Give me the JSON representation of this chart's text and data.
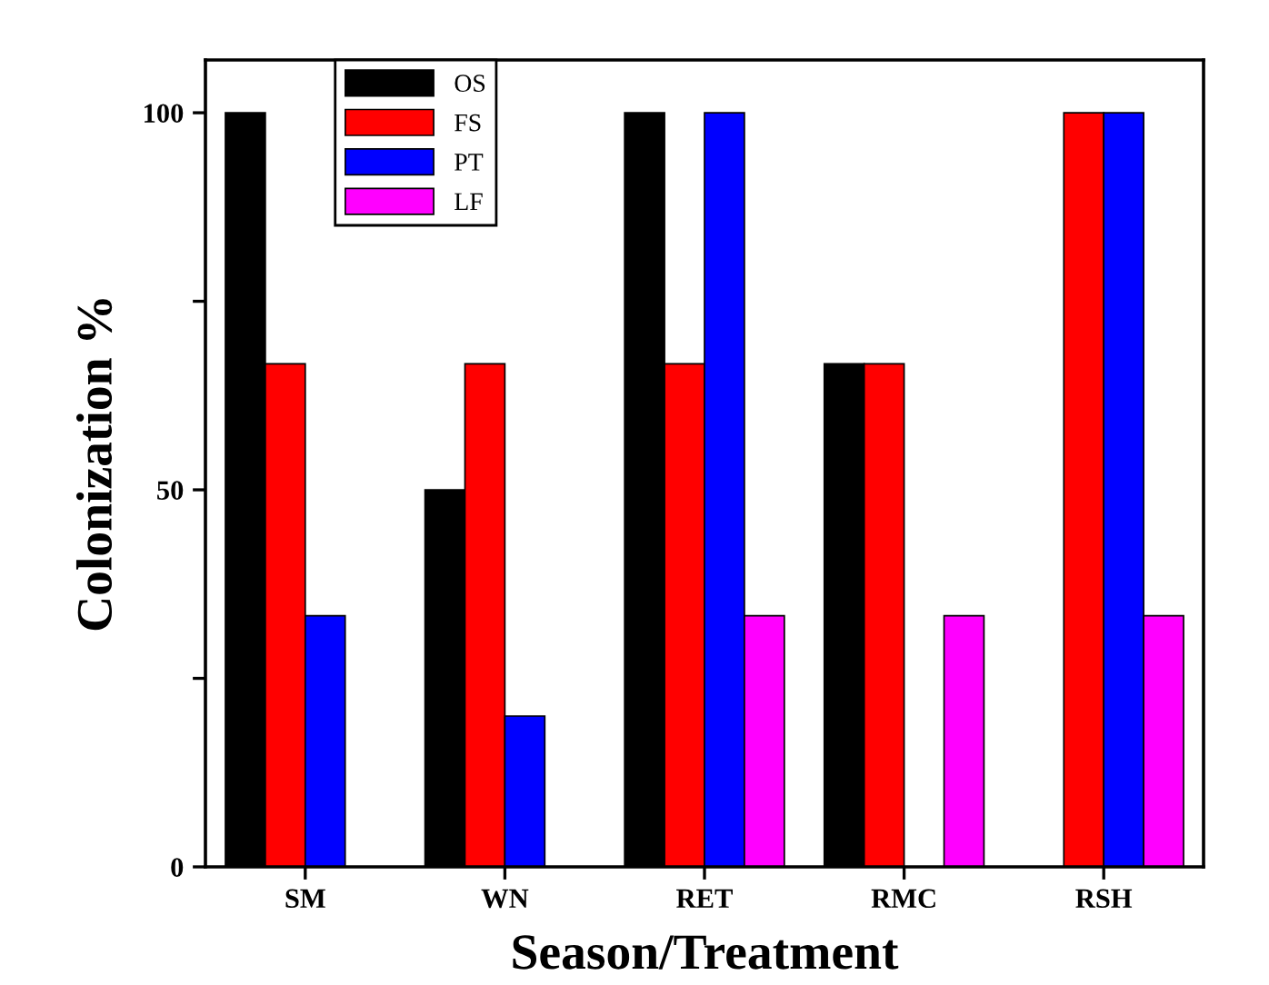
{
  "chart_data": {
    "type": "bar",
    "xlabel": "Season/Treatment",
    "ylabel": "Colonization %",
    "categories": [
      "SM",
      "WN",
      "RET",
      "RMC",
      "RSH"
    ],
    "series": [
      {
        "name": "OS",
        "color": "#000000",
        "values": [
          100,
          50,
          100,
          66.7,
          null
        ]
      },
      {
        "name": "FS",
        "color": "#ff0000",
        "values": [
          66.7,
          66.7,
          66.7,
          66.7,
          100
        ]
      },
      {
        "name": "PT",
        "color": "#0000ff",
        "values": [
          33.3,
          20,
          100,
          null,
          100
        ]
      },
      {
        "name": "LF",
        "color": "#ff00ff",
        "values": [
          null,
          null,
          33.3,
          33.3,
          33.3
        ]
      }
    ],
    "ylim": [
      0,
      107
    ],
    "yticks": [
      0,
      {
        "value": 25,
        "label": null
      },
      50,
      {
        "value": 75,
        "label": null
      },
      100
    ],
    "grid": false,
    "legend": "top left"
  }
}
